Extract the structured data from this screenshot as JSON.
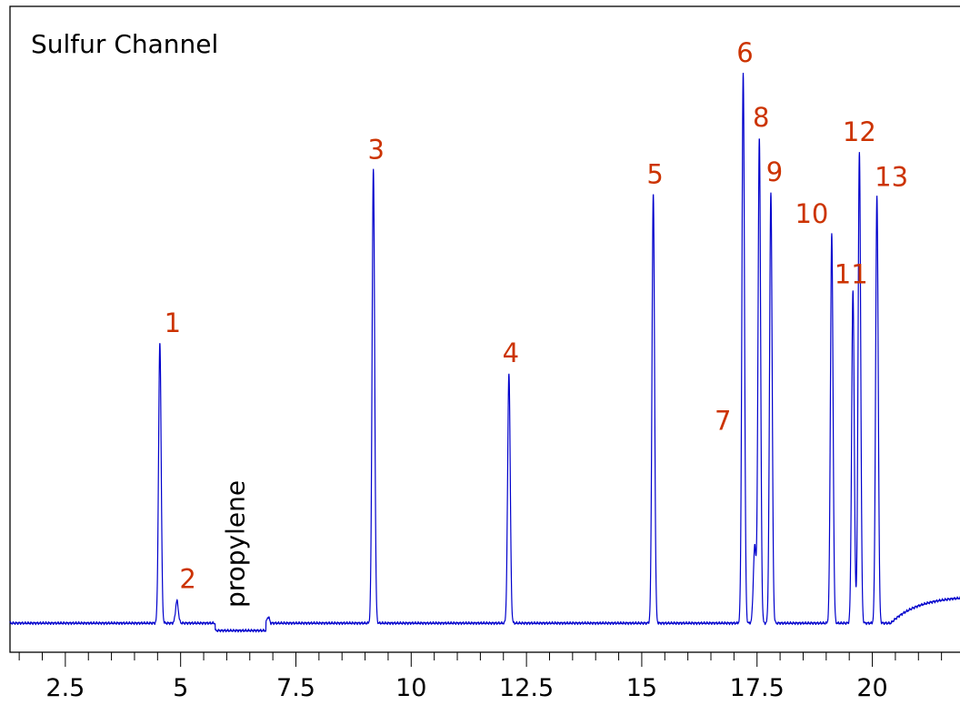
{
  "chart_data": {
    "type": "line",
    "title": "Sulfur Channel",
    "xlabel": "",
    "ylabel": "",
    "xlim": [
      1.3,
      22.0
    ],
    "ylim": [
      -0.2,
      11.4
    ],
    "x_ticks": [
      2.5,
      5,
      7.5,
      10,
      12.5,
      15,
      17.5,
      20
    ],
    "minor_tick_step": 0.5,
    "grid": false,
    "baseline": 0,
    "line_color": "#0000cc",
    "peak_label_color": "#cc3300",
    "peaks": [
      {
        "label": "1",
        "x": 4.55,
        "height": 5.65
      },
      {
        "label": "2",
        "x": 4.92,
        "height": 0.45
      },
      {
        "label": "3",
        "x": 9.18,
        "height": 9.15
      },
      {
        "label": "4",
        "x": 12.12,
        "height": 5.05
      },
      {
        "label": "5",
        "x": 15.25,
        "height": 8.65
      },
      {
        "label": "6",
        "x": 17.2,
        "height": 11.1
      },
      {
        "label": "7",
        "x": 17.45,
        "height": 1.55
      },
      {
        "label": "8",
        "x": 17.55,
        "height": 9.8
      },
      {
        "label": "9",
        "x": 17.8,
        "height": 8.7
      },
      {
        "label": "10",
        "x": 19.12,
        "height": 7.85
      },
      {
        "label": "11",
        "x": 19.58,
        "height": 6.7
      },
      {
        "label": "12",
        "x": 19.72,
        "height": 9.5
      },
      {
        "label": "13",
        "x": 20.1,
        "height": 8.6
      }
    ],
    "annotations": [
      {
        "text": "propylene",
        "x_range": [
          5.75,
          6.85
        ],
        "depth": -0.15
      }
    ]
  }
}
